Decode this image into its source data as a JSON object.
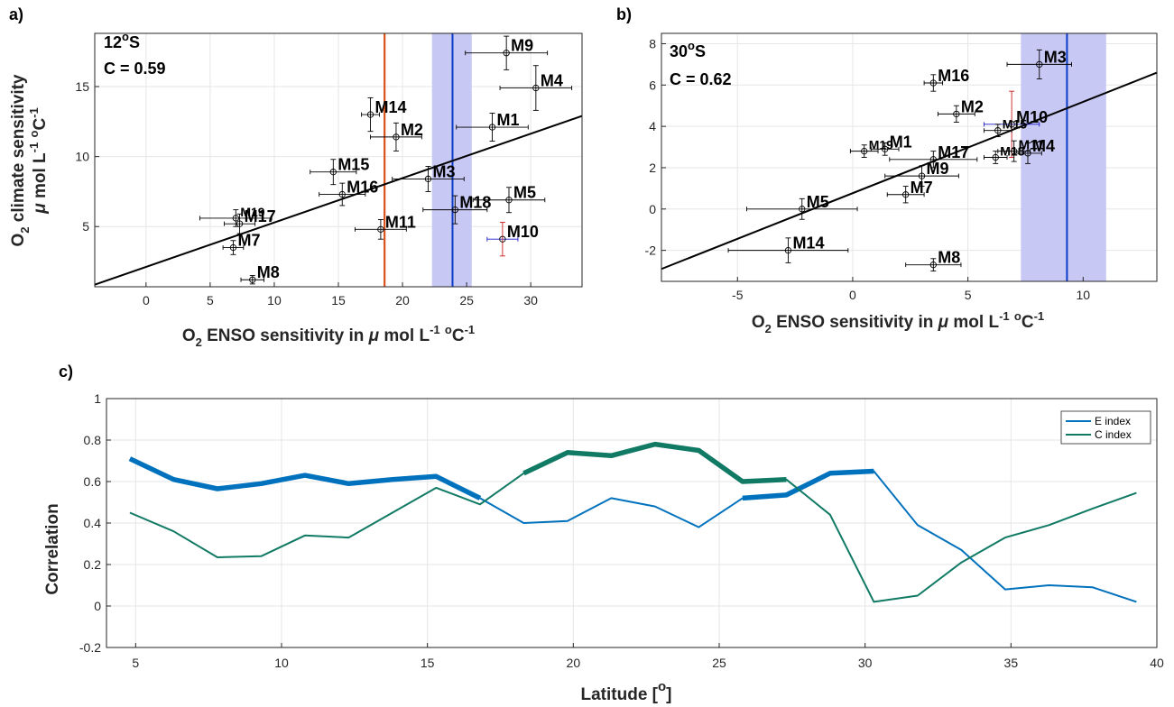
{
  "chart_data": [
    {
      "panel": "a)",
      "type": "scatter",
      "annotation": {
        "lat": "12",
        "lat_unit": "o",
        "lat_hemi": "S",
        "corr": "C = 0.59"
      },
      "xlabel": {
        "pre": "O",
        "sub": "2",
        "mid": " ENSO sensitivity in ",
        "mu": "μ",
        "post": " mol L",
        "sup1": "-1",
        "gap": " ",
        "deg": "o",
        "end": "C",
        "sup2": "-1"
      },
      "ylabel": {
        "pre": "O",
        "sub": "2",
        "line1": " climate sensitivity",
        "mu": "μ",
        "post": " mol L",
        "sup1": "-1",
        "gap": " ",
        "deg": "o",
        "end": "C",
        "sup2": "-1"
      },
      "xlim": [
        -4,
        34
      ],
      "ylim": [
        0.7,
        18.8
      ],
      "xticks": [
        0,
        5,
        10,
        15,
        20,
        25,
        30
      ],
      "yticks": [
        5,
        10,
        15
      ],
      "regression": [
        [
          -4,
          0.85
        ],
        [
          34,
          12.9
        ]
      ],
      "vline_obs": {
        "x": 18.6,
        "color": "#d95319"
      },
      "vline_model": {
        "x": 23.9,
        "band": [
          22.3,
          25.4
        ],
        "color": "#0b3cc8",
        "band_color": "#c8c8f5"
      },
      "points": [
        {
          "label": "M1",
          "x": 27.0,
          "y": 12.1,
          "xerr": 2.8,
          "yerr": 1.0,
          "fs": 18
        },
        {
          "label": "M2",
          "x": 19.5,
          "y": 11.4,
          "xerr": 2.0,
          "yerr": 1.0,
          "fs": 18
        },
        {
          "label": "M3",
          "x": 22.0,
          "y": 8.4,
          "xerr": 2.8,
          "yerr": 0.9,
          "fs": 18
        },
        {
          "label": "M4",
          "x": 30.4,
          "y": 14.9,
          "xerr": 2.8,
          "yerr": 1.6,
          "fs": 18
        },
        {
          "label": "M5",
          "x": 28.3,
          "y": 6.9,
          "xerr": 2.8,
          "yerr": 0.9,
          "fs": 18
        },
        {
          "label": "M7",
          "x": 6.8,
          "y": 3.5,
          "xerr": 0.8,
          "yerr": 0.5,
          "fs": 18
        },
        {
          "label": "M8",
          "x": 8.3,
          "y": 1.2,
          "xerr": 0.9,
          "yerr": 0.3,
          "fs": 18
        },
        {
          "label": "M9",
          "x": 28.1,
          "y": 17.4,
          "xerr": 3.2,
          "yerr": 1.2,
          "fs": 18
        },
        {
          "label": "M10",
          "x": 27.8,
          "y": 4.1,
          "xerr": 1.2,
          "yerr": 1.2,
          "fs": 18,
          "special": true
        },
        {
          "label": "M11",
          "x": 18.3,
          "y": 4.8,
          "xerr": 2.0,
          "yerr": 0.7,
          "fs": 18
        },
        {
          "label": "M14",
          "x": 17.5,
          "y": 13.0,
          "xerr": 0.7,
          "yerr": 1.2,
          "fs": 18
        },
        {
          "label": "M15",
          "x": 14.6,
          "y": 8.9,
          "xerr": 1.8,
          "yerr": 0.9,
          "fs": 18
        },
        {
          "label": "M16",
          "x": 15.3,
          "y": 7.3,
          "xerr": 1.8,
          "yerr": 0.8,
          "fs": 18
        },
        {
          "label": "M17",
          "x": 7.3,
          "y": 5.2,
          "xerr": 1.2,
          "yerr": 0.7,
          "fs": 18
        },
        {
          "label": "M18",
          "x": 24.1,
          "y": 6.2,
          "xerr": 2.5,
          "yerr": 1.0,
          "fs": 18
        },
        {
          "label": "M19",
          "x": 7.0,
          "y": 5.6,
          "xerr": 2.8,
          "yerr": 0.6,
          "fs": 14
        }
      ]
    },
    {
      "panel": "b)",
      "type": "scatter",
      "annotation": {
        "lat": "30",
        "lat_unit": "o",
        "lat_hemi": "S",
        "corr": "C = 0.62"
      },
      "xlabel": {
        "pre": "O",
        "sub": "2",
        "mid": " ENSO sensitivity in ",
        "mu": "μ",
        "post": " mol L",
        "sup1": "-1",
        "gap": " ",
        "deg": "o",
        "end": "C",
        "sup2": "-1"
      },
      "xlim": [
        -8.3,
        13.2
      ],
      "ylim": [
        -3.5,
        8.5
      ],
      "xticks": [
        -5,
        0,
        5,
        10
      ],
      "yticks": [
        -2,
        0,
        2,
        4,
        6,
        8
      ],
      "regression": [
        [
          -8.3,
          -2.9
        ],
        [
          13.2,
          6.6
        ]
      ],
      "vline_model": {
        "x": 9.3,
        "band": [
          7.3,
          11.0
        ],
        "color": "#0b3cc8",
        "band_color": "#c8c8f5"
      },
      "points": [
        {
          "label": "M1",
          "x": 1.4,
          "y": 2.9,
          "xerr": 0.6,
          "yerr": 0.3,
          "fs": 18
        },
        {
          "label": "M2",
          "x": 4.5,
          "y": 4.6,
          "xerr": 0.8,
          "yerr": 0.4,
          "fs": 18
        },
        {
          "label": "M3",
          "x": 8.1,
          "y": 7.0,
          "xerr": 1.4,
          "yerr": 0.7,
          "fs": 18
        },
        {
          "label": "M4",
          "x": 7.6,
          "y": 2.7,
          "xerr": 0.6,
          "yerr": 0.5,
          "fs": 18
        },
        {
          "label": "M5",
          "x": -2.2,
          "y": 0.0,
          "xerr": 2.4,
          "yerr": 0.5,
          "fs": 18
        },
        {
          "label": "M7",
          "x": 2.3,
          "y": 0.7,
          "xerr": 0.8,
          "yerr": 0.4,
          "fs": 18
        },
        {
          "label": "M8",
          "x": 3.5,
          "y": -2.7,
          "xerr": 1.2,
          "yerr": 0.3,
          "fs": 18
        },
        {
          "label": "M9",
          "x": 3.0,
          "y": 1.6,
          "xerr": 1.6,
          "yerr": 0.5,
          "fs": 18
        },
        {
          "label": "M10",
          "x": 6.9,
          "y": 4.1,
          "xerr": 1.2,
          "yerr": 1.6,
          "fs": 18,
          "special": true
        },
        {
          "label": "M11",
          "x": 7.0,
          "y": 2.8,
          "xerr": 0.7,
          "yerr": 0.5,
          "fs": 15
        },
        {
          "label": "M14",
          "x": -2.8,
          "y": -2.0,
          "xerr": 2.6,
          "yerr": 0.6,
          "fs": 18
        },
        {
          "label": "M15",
          "x": 6.3,
          "y": 3.8,
          "xerr": 0.6,
          "yerr": 0.3,
          "fs": 14
        },
        {
          "label": "M16",
          "x": 3.5,
          "y": 6.1,
          "xerr": 0.4,
          "yerr": 0.4,
          "fs": 18
        },
        {
          "label": "M17",
          "x": 3.5,
          "y": 2.4,
          "xerr": 1.9,
          "yerr": 0.4,
          "fs": 18
        },
        {
          "label": "M18",
          "x": 6.2,
          "y": 2.5,
          "xerr": 0.5,
          "yerr": 0.3,
          "fs": 14
        },
        {
          "label": "M19",
          "x": 0.5,
          "y": 2.8,
          "xerr": 0.6,
          "yerr": 0.3,
          "fs": 14
        }
      ]
    },
    {
      "panel": "c)",
      "type": "line",
      "xlabel": {
        "pre": "Latitude [",
        "deg": "o",
        "post": "]"
      },
      "ylabel": "Correlation",
      "xlim": [
        4,
        40
      ],
      "ylim": [
        -0.2,
        1
      ],
      "xticks": [
        5,
        10,
        15,
        20,
        25,
        30,
        35,
        40
      ],
      "yticks": [
        -0.2,
        0,
        0.2,
        0.4,
        0.6,
        0.8,
        1
      ],
      "legend_position": "top-right",
      "x": [
        4.8,
        6.3,
        7.8,
        9.3,
        10.8,
        12.3,
        13.8,
        15.3,
        16.8,
        18.3,
        19.8,
        21.3,
        22.8,
        24.3,
        25.8,
        27.3,
        28.8,
        30.3,
        31.8,
        33.3,
        34.8,
        36.3,
        37.8,
        39.3
      ],
      "series": [
        {
          "name": "E index",
          "color": "#0072bd",
          "values": [
            0.71,
            0.61,
            0.565,
            0.59,
            0.63,
            0.59,
            0.61,
            0.625,
            0.52,
            0.4,
            0.41,
            0.52,
            0.48,
            0.38,
            0.52,
            0.535,
            0.64,
            0.65,
            0.39,
            0.27,
            0.08,
            0.1,
            0.09,
            0.02
          ],
          "thick_segments": [
            [
              0,
              8
            ],
            [
              14,
              17
            ]
          ]
        },
        {
          "name": "C index",
          "color": "#117a65",
          "values": [
            0.45,
            0.36,
            0.235,
            0.24,
            0.34,
            0.33,
            0.45,
            0.57,
            0.49,
            0.64,
            0.74,
            0.725,
            0.78,
            0.75,
            0.6,
            0.61,
            0.44,
            0.02,
            0.05,
            0.21,
            0.33,
            0.39,
            0.47,
            0.545
          ],
          "thick_segments": [
            [
              9,
              15
            ]
          ]
        }
      ]
    }
  ]
}
